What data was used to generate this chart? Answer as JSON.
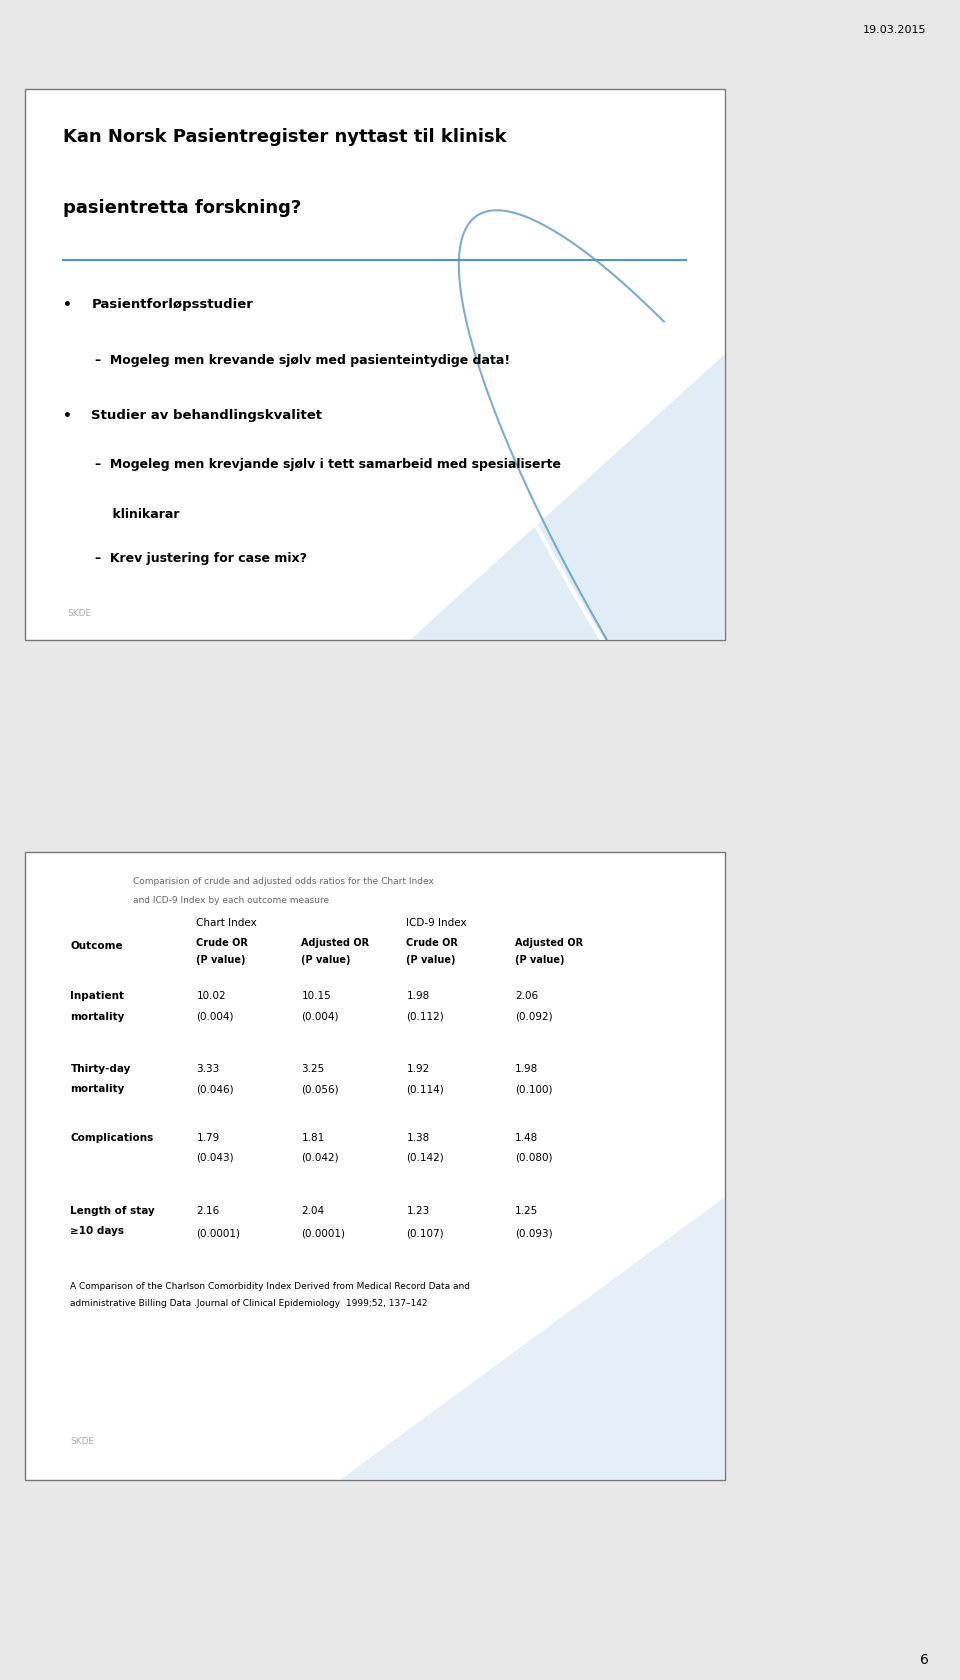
{
  "date_text": "19.03.2015",
  "page_number": "6",
  "bg_color": "#e8e8e8",
  "slide1": {
    "title_line1": "Kan Norsk Pasientregister nyttast til klinisk",
    "title_line2": "pasientretta forskning?",
    "bullet1_main": "Pasientforløpsstudier",
    "bullet1_sub1": "Mogeleg men krevande sjølv med pasienteintydige data!",
    "bullet2_main": "Studier av behandlingskvalitet",
    "bullet2_sub1": "Mogeleg men krevjande sjølv i tett samarbeid med spesialiserte",
    "bullet2_sub1b": "klinikarar",
    "bullet2_sub2": "Krev justering for case mix?",
    "footer": "SKDE",
    "line_color": "#4a9abf"
  },
  "slide2": {
    "caption_line1": "Comparision of crude and adjusted odds ratios for the Chart Index",
    "caption_line2": "and ICD-9 Index by each outcome measure",
    "group_header1": "Chart Index",
    "group_header2": "ICD-9 Index",
    "rows": [
      {
        "outcome_lines": [
          "Inpatient",
          "mortality"
        ],
        "chart_crude": "10.02",
        "chart_crude_p": "(0.004)",
        "chart_adj": "10.15",
        "chart_adj_p": "(0.004)",
        "icd_crude": "1.98",
        "icd_crude_p": "(0.112)",
        "icd_adj": "2.06",
        "icd_adj_p": "(0.092)"
      },
      {
        "outcome_lines": [
          "Thirty-day",
          "mortality"
        ],
        "chart_crude": "3.33",
        "chart_crude_p": "(0.046)",
        "chart_adj": "3.25",
        "chart_adj_p": "(0.056)",
        "icd_crude": "1.92",
        "icd_crude_p": "(0.114)",
        "icd_adj": "1.98",
        "icd_adj_p": "(0.100)"
      },
      {
        "outcome_lines": [
          "Complications"
        ],
        "chart_crude": "1.79",
        "chart_crude_p": "(0.043)",
        "chart_adj": "1.81",
        "chart_adj_p": "(0.042)",
        "icd_crude": "1.38",
        "icd_crude_p": "(0.142)",
        "icd_adj": "1.48",
        "icd_adj_p": "(0.080)"
      },
      {
        "outcome_lines": [
          "Length of stay",
          "≥10 days"
        ],
        "chart_crude": "2.16",
        "chart_crude_p": "(0.0001)",
        "chart_adj": "2.04",
        "chart_adj_p": "(0.0001)",
        "icd_crude": "1.23",
        "icd_crude_p": "(0.107)",
        "icd_adj": "1.25",
        "icd_adj_p": "(0.093)"
      }
    ],
    "footnote_line1": "A Comparison of the Charlson Comorbidity Index Derived from Medical Record Data and",
    "footnote_line2": "administrative Billing Data .Journal of Clinical Epidemiology  1999;52, 137–142",
    "footer": "SKDE"
  }
}
